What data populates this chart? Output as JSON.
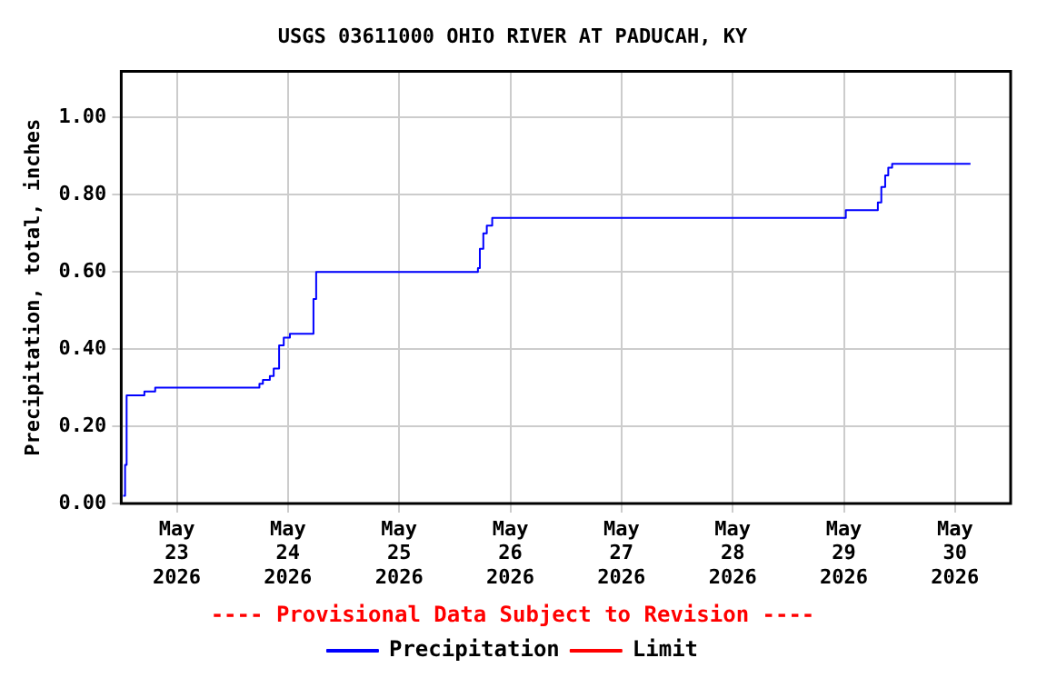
{
  "chart_data": {
    "type": "step",
    "title": "USGS 03611000 OHIO RIVER AT PADUCAH, KY",
    "ylabel": "Precipitation, total, inches",
    "annotations": [
      "---- Provisional Data Subject to Revision ----"
    ],
    "xlim": [
      "2026-05-22T12:00",
      "2026-05-30T12:00"
    ],
    "xticks": [
      {
        "value": "2026-05-23",
        "label": "May 23 2026"
      },
      {
        "value": "2026-05-24",
        "label": "May 24 2026"
      },
      {
        "value": "2026-05-25",
        "label": "May 25 2026"
      },
      {
        "value": "2026-05-26",
        "label": "May 26 2026"
      },
      {
        "value": "2026-05-27",
        "label": "May 27 2026"
      },
      {
        "value": "2026-05-28",
        "label": "May 28 2026"
      },
      {
        "value": "2026-05-29",
        "label": "May 29 2026"
      },
      {
        "value": "2026-05-30",
        "label": "May 30 2026"
      }
    ],
    "ylim": [
      0,
      1.12
    ],
    "yticks": [
      {
        "value": 0,
        "label": "0.00"
      },
      {
        "value": 0.2,
        "label": "0.20"
      },
      {
        "value": 0.4,
        "label": "0.40"
      },
      {
        "value": 0.6,
        "label": "0.60"
      },
      {
        "value": 0.8,
        "label": "0.80"
      },
      {
        "value": 1,
        "label": "1.00"
      }
    ],
    "grid": true,
    "legend": "bottom",
    "marker": "none",
    "line_style": "solid",
    "series": [
      {
        "name": "Precipitation",
        "color": "#0000ff",
        "x": [
          "2026-05-22T12:25",
          "2026-05-22T12:50",
          "2026-05-22T13:10",
          "2026-05-22T17:00",
          "2026-05-22T19:20",
          "2026-05-23T17:50",
          "2026-05-23T18:35",
          "2026-05-23T20:05",
          "2026-05-23T20:55",
          "2026-05-23T22:05",
          "2026-05-23T23:05",
          "2026-05-24T00:25",
          "2026-05-24T05:30",
          "2026-05-24T06:05",
          "2026-05-25T17:00",
          "2026-05-25T17:25",
          "2026-05-25T18:10",
          "2026-05-25T18:55",
          "2026-05-25T20:05",
          "2026-05-29T00:25",
          "2026-05-29T07:20",
          "2026-05-29T08:05",
          "2026-05-29T08:55",
          "2026-05-29T09:35",
          "2026-05-29T10:25",
          "2026-05-30T03:20"
        ],
        "values": [
          0.02,
          0.1,
          0.28,
          0.29,
          0.3,
          0.31,
          0.32,
          0.33,
          0.35,
          0.41,
          0.43,
          0.44,
          0.53,
          0.6,
          0.61,
          0.66,
          0.7,
          0.72,
          0.74,
          0.76,
          0.78,
          0.82,
          0.85,
          0.87,
          0.88,
          0.88
        ]
      },
      {
        "name": "Limit",
        "color": "#ff0000"
      }
    ]
  }
}
